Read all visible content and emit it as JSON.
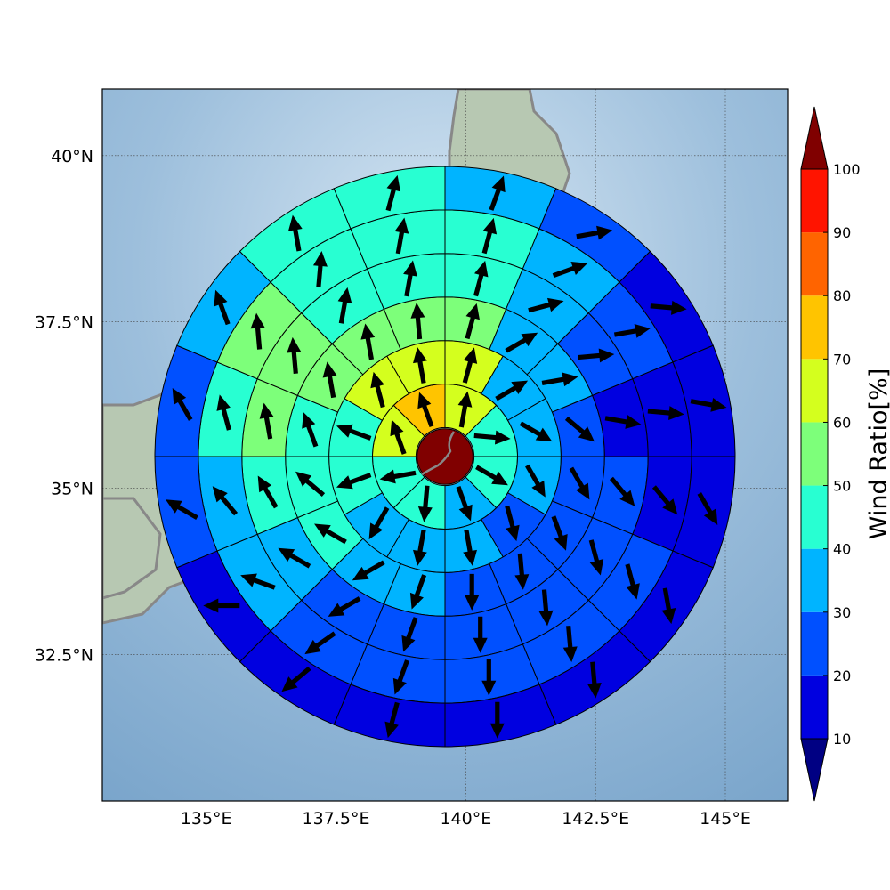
{
  "map": {
    "lon_range": [
      133.0,
      146.2
    ],
    "lat_range": [
      30.3,
      41.0
    ],
    "center": {
      "lon": 139.6,
      "lat": 35.5
    },
    "ring_radii_km": [
      40,
      100,
      160,
      220,
      280,
      340,
      400
    ],
    "background_colors": {
      "sea": "#8fb4d6",
      "sea_light": "#cfe1f1",
      "land": "#b8c9b3",
      "coast": "#888888"
    }
  },
  "axes": {
    "x_ticks": [
      {
        "value": 135.0,
        "label": "135°E"
      },
      {
        "value": 137.5,
        "label": "137.5°E"
      },
      {
        "value": 140.0,
        "label": "140°E"
      },
      {
        "value": 142.5,
        "label": "142.5°E"
      },
      {
        "value": 145.0,
        "label": "145°E"
      }
    ],
    "y_ticks": [
      {
        "value": 40.0,
        "label": "40°N"
      },
      {
        "value": 37.5,
        "label": "37.5°N"
      },
      {
        "value": 35.0,
        "label": "35°N"
      },
      {
        "value": 32.5,
        "label": "32.5°N"
      }
    ]
  },
  "colorbar": {
    "title": "Wind Ratio[%]",
    "ticks": [
      "10",
      "20",
      "30",
      "40",
      "50",
      "60",
      "70",
      "80",
      "90",
      "100"
    ],
    "colors": [
      "#0000e0",
      "#0050ff",
      "#00b4ff",
      "#28ffd2",
      "#7dff7a",
      "#d4ff1e",
      "#ffc400",
      "#ff6400",
      "#ff1400"
    ],
    "under_color": "#000083",
    "over_color": "#800000"
  },
  "chart_data": {
    "type": "polar_wind_rose_map",
    "value_unit": "%",
    "center_value": 100,
    "rings": [
      {
        "inner_km": 40,
        "outer_km": 100,
        "sectors": 8,
        "values": [
          65,
          40,
          40,
          35,
          40,
          40,
          65,
          70
        ],
        "arrow_dir": [
          10,
          95,
          120,
          160,
          185,
          260,
          340,
          340
        ]
      },
      {
        "inner_km": 100,
        "outer_km": 160,
        "sectors": 12,
        "values": [
          65,
          35,
          35,
          35,
          25,
          30,
          35,
          35,
          40,
          40,
          60,
          60
        ],
        "arrow_dir": [
          15,
          60,
          120,
          150,
          165,
          170,
          190,
          210,
          250,
          290,
          345,
          350
        ]
      },
      {
        "inner_km": 160,
        "outer_km": 220,
        "sectors": 16,
        "values": [
          55,
          30,
          30,
          25,
          25,
          25,
          25,
          25,
          30,
          30,
          40,
          40,
          40,
          55,
          55,
          55
        ],
        "arrow_dir": [
          15,
          60,
          80,
          130,
          150,
          160,
          175,
          180,
          200,
          240,
          300,
          310,
          340,
          350,
          350,
          355
        ]
      },
      {
        "inner_km": 220,
        "outer_km": 280,
        "sectors": 16,
        "values": [
          40,
          30,
          20,
          15,
          20,
          20,
          20,
          20,
          25,
          25,
          30,
          40,
          50,
          55,
          40,
          40
        ],
        "arrow_dir": [
          15,
          75,
          85,
          100,
          140,
          165,
          175,
          180,
          200,
          240,
          300,
          330,
          350,
          355,
          10,
          10
        ]
      },
      {
        "inner_km": 280,
        "outer_km": 340,
        "sectors": 16,
        "values": [
          40,
          30,
          20,
          15,
          15,
          20,
          20,
          20,
          20,
          25,
          30,
          35,
          45,
          50,
          45,
          40
        ],
        "arrow_dir": [
          15,
          70,
          80,
          95,
          140,
          165,
          175,
          180,
          200,
          235,
          290,
          320,
          345,
          355,
          5,
          10
        ]
      },
      {
        "inner_km": 340,
        "outer_km": 400,
        "sectors": 16,
        "values": [
          35,
          20,
          15,
          10,
          10,
          10,
          15,
          15,
          15,
          10,
          15,
          20,
          25,
          35,
          40,
          40
        ],
        "arrow_dir": [
          20,
          80,
          95,
          100,
          150,
          170,
          175,
          180,
          195,
          230,
          270,
          300,
          330,
          340,
          350,
          15
        ]
      }
    ]
  }
}
